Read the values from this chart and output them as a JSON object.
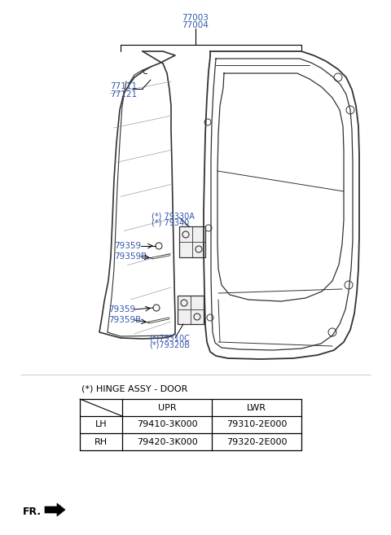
{
  "background_color": "#ffffff",
  "fig_width": 4.8,
  "fig_height": 6.57,
  "dpi": 100,
  "labels": {
    "top_label1": "77003",
    "top_label2": "77004",
    "lbl_77111": "77111",
    "lbl_77121": "77121",
    "lbl_79330A": "(*) 79330A",
    "lbl_79340": "(*) 79340",
    "lbl_79359_1": "79359",
    "lbl_79359B_1": "79359B",
    "lbl_79359_2": "79359",
    "lbl_79359B_2": "79359B",
    "lbl_79310C": "(*)79310C",
    "lbl_79320B": "(*)79320B",
    "hinge_title": "(*) HINGE ASSY - DOOR",
    "fr_label": "FR."
  },
  "table": {
    "header_row": [
      "",
      "UPR",
      "LWR"
    ],
    "row1": [
      "LH",
      "79410-3K000",
      "79310-2E000"
    ],
    "row2": [
      "RH",
      "79420-3K000",
      "79320-2E000"
    ]
  },
  "text_color": "#3355aa",
  "line_color": "#000000",
  "diagram_line_color": "#333333"
}
